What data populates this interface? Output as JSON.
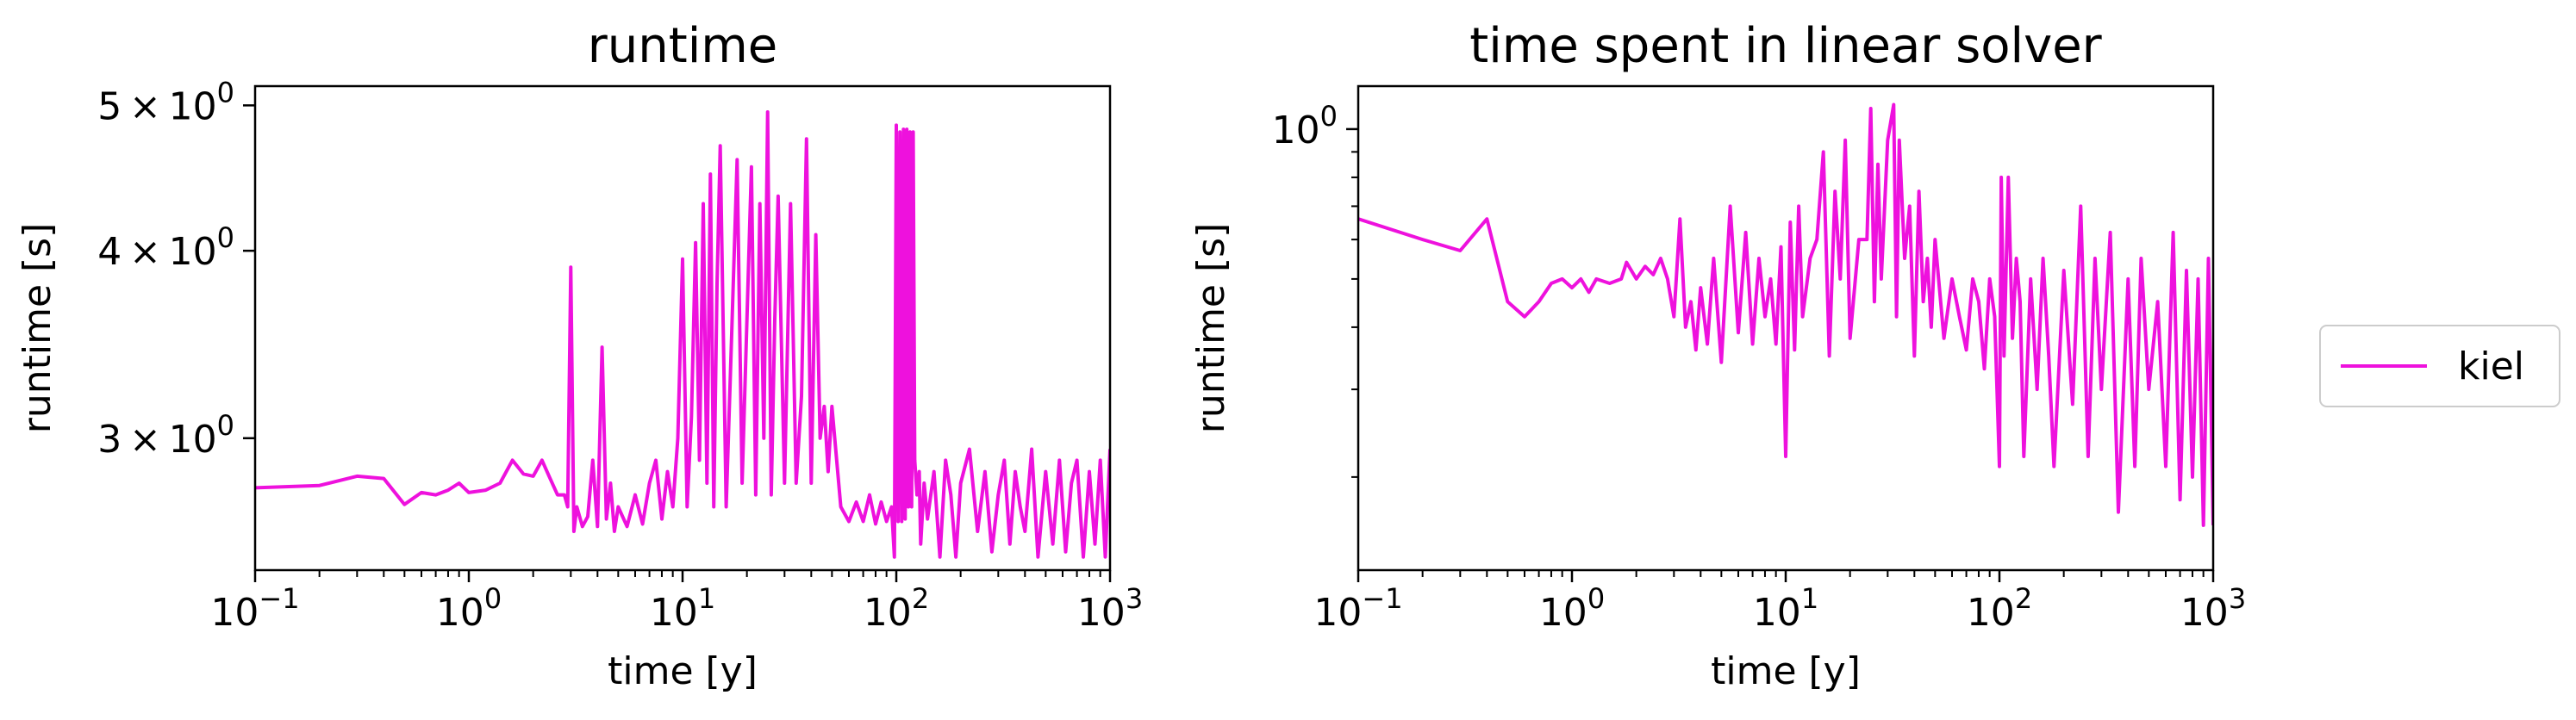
{
  "chart_data": [
    {
      "type": "line",
      "title": "runtime",
      "xlabel": "time [y]",
      "ylabel": "runtime [s]",
      "xscale": "log",
      "yscale": "log",
      "xlim": [
        0.1,
        1000
      ],
      "ylim": [
        2.45,
        5.15
      ],
      "xticks": [
        {
          "value": 0.1,
          "base": "10",
          "exp": "−1"
        },
        {
          "value": 1,
          "base": "10",
          "exp": "0"
        },
        {
          "value": 10,
          "base": "10",
          "exp": "1"
        },
        {
          "value": 100,
          "base": "10",
          "exp": "2"
        },
        {
          "value": 1000,
          "base": "10",
          "exp": "3"
        }
      ],
      "yticks": [
        {
          "value": 3,
          "mant": "3",
          "base": "10",
          "exp": "0"
        },
        {
          "value": 4,
          "mant": "4",
          "base": "10",
          "exp": "0"
        },
        {
          "value": 5,
          "mant": "5",
          "base": "10",
          "exp": "0"
        }
      ],
      "grid": false,
      "series": [
        {
          "name": "kiel",
          "color": "#ee11dd",
          "x": [
            0.1,
            0.2,
            0.3,
            0.4,
            0.5,
            0.6,
            0.7,
            0.8,
            0.9,
            1.0,
            1.2,
            1.4,
            1.6,
            1.8,
            2.0,
            2.2,
            2.4,
            2.6,
            2.8,
            2.9,
            3.0,
            3.1,
            3.2,
            3.4,
            3.6,
            3.8,
            4.0,
            4.2,
            4.4,
            4.6,
            4.8,
            5.0,
            5.5,
            6,
            6.5,
            7,
            7.5,
            8,
            8.5,
            9,
            9.5,
            10,
            10.5,
            11,
            11.5,
            12,
            12.5,
            13,
            13.5,
            14,
            14.5,
            15,
            16,
            17,
            18,
            19,
            20,
            21,
            22,
            23,
            24,
            25,
            26,
            27,
            28,
            30,
            32,
            34,
            36,
            38,
            40,
            42,
            44,
            46,
            48,
            50,
            55,
            60,
            65,
            70,
            75,
            80,
            85,
            90,
            95,
            98,
            100,
            102,
            104,
            106,
            108,
            110,
            112,
            114,
            116,
            118,
            120,
            122,
            125,
            128,
            130,
            135,
            140,
            150,
            160,
            170,
            180,
            190,
            200,
            220,
            240,
            260,
            280,
            300,
            320,
            340,
            360,
            380,
            400,
            430,
            460,
            500,
            540,
            580,
            620,
            660,
            700,
            750,
            800,
            850,
            900,
            950,
            1000
          ],
          "y": [
            2.78,
            2.79,
            2.83,
            2.82,
            2.71,
            2.76,
            2.75,
            2.77,
            2.8,
            2.76,
            2.77,
            2.8,
            2.9,
            2.84,
            2.83,
            2.9,
            2.82,
            2.75,
            2.75,
            2.7,
            3.9,
            2.6,
            2.7,
            2.62,
            2.66,
            2.9,
            2.62,
            3.45,
            2.65,
            2.8,
            2.6,
            2.7,
            2.62,
            2.75,
            2.63,
            2.8,
            2.9,
            2.65,
            2.85,
            2.7,
            3.0,
            3.95,
            2.7,
            3.1,
            4.05,
            2.9,
            4.3,
            2.8,
            4.5,
            2.7,
            3.8,
            4.7,
            2.7,
            3.55,
            4.6,
            2.8,
            3.6,
            4.55,
            2.75,
            4.3,
            3.0,
            4.95,
            2.75,
            3.6,
            4.35,
            2.8,
            4.3,
            2.8,
            3.2,
            4.75,
            2.8,
            4.1,
            3.0,
            3.15,
            2.85,
            3.15,
            2.7,
            2.64,
            2.72,
            2.64,
            2.75,
            2.63,
            2.72,
            2.64,
            2.7,
            2.5,
            4.85,
            2.64,
            4.8,
            2.64,
            4.82,
            2.65,
            4.82,
            2.7,
            4.8,
            2.7,
            4.8,
            2.9,
            2.75,
            2.85,
            2.55,
            2.8,
            2.65,
            2.85,
            2.5,
            2.9,
            2.75,
            2.5,
            2.8,
            2.95,
            2.6,
            2.85,
            2.52,
            2.75,
            2.9,
            2.55,
            2.85,
            2.7,
            2.6,
            2.95,
            2.5,
            2.85,
            2.55,
            2.9,
            2.52,
            2.8,
            2.9,
            2.5,
            2.85,
            2.55,
            2.9,
            2.5,
            2.95
          ]
        }
      ]
    },
    {
      "type": "line",
      "title": "time spent in linear solver",
      "xlabel": "time [y]",
      "ylabel": "runtime [s]",
      "xscale": "log",
      "yscale": "log",
      "xlim": [
        0.1,
        1000
      ],
      "ylim": [
        0.13,
        1.22
      ],
      "xticks": [
        {
          "value": 0.1,
          "base": "10",
          "exp": "−1"
        },
        {
          "value": 1,
          "base": "10",
          "exp": "0"
        },
        {
          "value": 10,
          "base": "10",
          "exp": "1"
        },
        {
          "value": 100,
          "base": "10",
          "exp": "2"
        },
        {
          "value": 1000,
          "base": "10",
          "exp": "3"
        }
      ],
      "yticks": [
        {
          "value": 1,
          "mant": "",
          "base": "10",
          "exp": "0"
        }
      ],
      "grid": false,
      "series": [
        {
          "name": "kiel",
          "color": "#ee11dd",
          "x": [
            0.1,
            0.2,
            0.3,
            0.4,
            0.5,
            0.6,
            0.7,
            0.8,
            0.9,
            1.0,
            1.1,
            1.2,
            1.3,
            1.5,
            1.7,
            1.8,
            2.0,
            2.2,
            2.4,
            2.6,
            2.8,
            3.0,
            3.2,
            3.4,
            3.6,
            3.8,
            4.0,
            4.3,
            4.6,
            5,
            5.5,
            6,
            6.5,
            7,
            7.5,
            8,
            8.5,
            9,
            9.5,
            10,
            10.5,
            11,
            11.5,
            12,
            13,
            14,
            15,
            16,
            17,
            18,
            19,
            20,
            22,
            24,
            25,
            26,
            27,
            28,
            30,
            32,
            33,
            34,
            36,
            38,
            40,
            42,
            44,
            46,
            48,
            50,
            55,
            60,
            65,
            70,
            75,
            80,
            85,
            90,
            95,
            100,
            102,
            105,
            110,
            115,
            120,
            125,
            130,
            140,
            150,
            160,
            170,
            180,
            200,
            220,
            240,
            260,
            280,
            300,
            330,
            360,
            400,
            430,
            460,
            500,
            550,
            600,
            650,
            700,
            750,
            800,
            850,
            900,
            950,
            1000
          ],
          "y": [
            0.66,
            0.6,
            0.57,
            0.66,
            0.45,
            0.42,
            0.45,
            0.49,
            0.5,
            0.48,
            0.5,
            0.47,
            0.5,
            0.49,
            0.5,
            0.54,
            0.5,
            0.53,
            0.51,
            0.55,
            0.5,
            0.42,
            0.66,
            0.4,
            0.45,
            0.36,
            0.48,
            0.37,
            0.55,
            0.34,
            0.7,
            0.39,
            0.62,
            0.37,
            0.55,
            0.42,
            0.5,
            0.37,
            0.58,
            0.22,
            0.65,
            0.36,
            0.7,
            0.42,
            0.55,
            0.6,
            0.9,
            0.35,
            0.75,
            0.5,
            0.95,
            0.38,
            0.6,
            0.6,
            1.1,
            0.45,
            0.85,
            0.5,
            0.95,
            1.12,
            0.42,
            0.95,
            0.55,
            0.7,
            0.35,
            0.75,
            0.45,
            0.55,
            0.4,
            0.6,
            0.38,
            0.5,
            0.42,
            0.36,
            0.5,
            0.45,
            0.33,
            0.5,
            0.42,
            0.21,
            0.8,
            0.35,
            0.8,
            0.38,
            0.55,
            0.45,
            0.22,
            0.5,
            0.3,
            0.55,
            0.35,
            0.21,
            0.52,
            0.28,
            0.7,
            0.22,
            0.55,
            0.3,
            0.62,
            0.17,
            0.5,
            0.21,
            0.55,
            0.3,
            0.45,
            0.21,
            0.62,
            0.18,
            0.52,
            0.2,
            0.5,
            0.16,
            0.55,
            0.16
          ]
        }
      ]
    }
  ],
  "legend": {
    "label": "kiel",
    "color": "#ee11dd",
    "placement": "outside-right"
  }
}
